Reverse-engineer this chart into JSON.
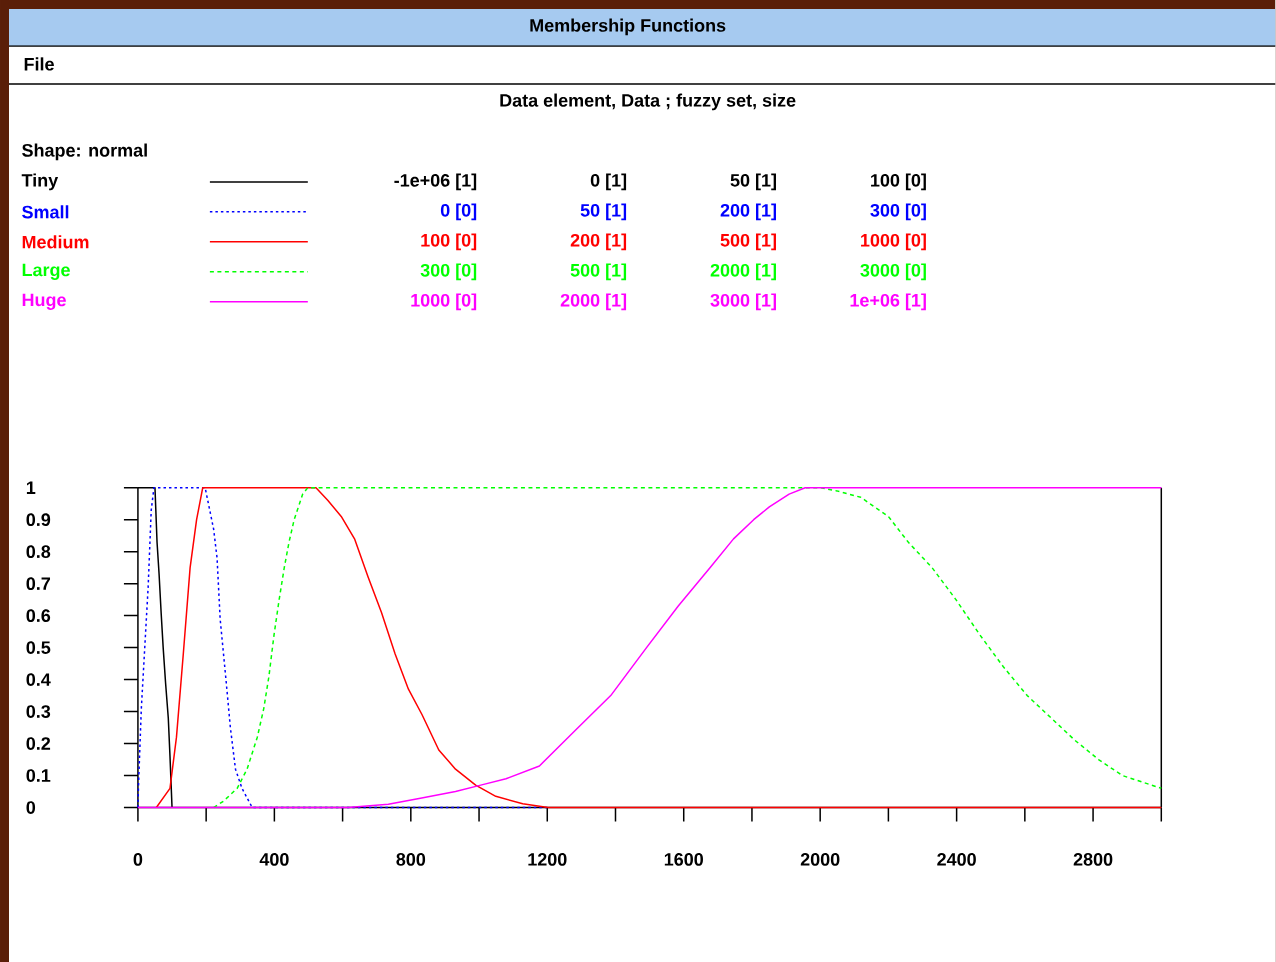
{
  "chart_data": {
    "type": "line",
    "title": "Membership Functions",
    "subtitle": "Data element, Data ; fuzzy set, size",
    "annotations": [
      "File",
      "Shape: normal",
      "-1e+06 [1]",
      "0 [1]",
      "50 [1]",
      "100 [0]",
      "0 [0]",
      "50 [1]",
      "200 [1]",
      "300 [0]",
      "100 [0]",
      "200 [1]",
      "500 [1]",
      "1000 [0]",
      "300 [0]",
      "500 [1]",
      "2000 [1]",
      "3000 [0]",
      "1000 [0]",
      "2000 [1]",
      "3000 [1]",
      "1e+06 [1]"
    ],
    "legend": "top left",
    "xlim": [
      0,
      3000
    ],
    "ylim": [
      0,
      1
    ],
    "xticks": [
      0,
      {
        "value": 200,
        "label": null
      },
      400,
      {
        "value": 600,
        "label": null
      },
      800,
      {
        "value": 1000,
        "label": null
      },
      1200,
      {
        "value": 1400,
        "label": null
      },
      1600,
      {
        "value": 1800,
        "label": null
      },
      2000,
      {
        "value": 2200,
        "label": null
      },
      2400,
      {
        "value": 2600,
        "label": null
      },
      2800,
      {
        "value": 3000,
        "label": null
      }
    ],
    "yticks": [
      0,
      0.1,
      0.2,
      0.3,
      0.4,
      0.5,
      0.6,
      0.7,
      0.8,
      0.9,
      1
    ],
    "series": [
      {
        "name": "Tiny",
        "color": "#000000",
        "line_style": "solid",
        "x": [
          0,
          50,
          56,
          62,
          68,
          74,
          81,
          89,
          94,
          100
        ],
        "values": [
          1,
          1,
          0.83,
          0.73,
          0.61,
          0.5,
          0.39,
          0.28,
          0.16,
          0
        ]
      },
      {
        "name": "Small",
        "color": "#0000ff",
        "line_style": "dotted",
        "x": [
          0,
          2,
          10,
          30,
          39,
          47,
          197,
          222,
          232,
          241,
          259,
          271,
          286,
          305,
          335,
          1200
        ],
        "values": [
          0,
          0.08,
          0.31,
          0.69,
          0.93,
          1,
          1,
          0.87,
          0.78,
          0.59,
          0.39,
          0.25,
          0.12,
          0.06,
          0,
          0
        ]
      },
      {
        "name": "Medium",
        "color": "#ff0000",
        "line_style": "solid",
        "x": [
          54,
          94,
          113,
          133,
          153,
          172,
          190,
          522,
          557,
          596,
          635,
          675,
          714,
          754,
          793,
          833,
          882,
          931,
          990,
          1049,
          1128,
          1202,
          3000
        ],
        "values": [
          0,
          0.06,
          0.22,
          0.48,
          0.75,
          0.9,
          1,
          1,
          0.96,
          0.91,
          0.84,
          0.72,
          0.61,
          0.48,
          0.37,
          0.29,
          0.18,
          0.12,
          0.07,
          0.035,
          0.012,
          0,
          0
        ]
      },
      {
        "name": "Large",
        "color": "#00ff00",
        "line_style": "dashed",
        "x": [
          222,
          251,
          291,
          320,
          350,
          369,
          384,
          399,
          414,
          429,
          443,
          458,
          483,
          498,
          2000,
          2049,
          2119,
          2200,
          2258,
          2328,
          2398,
          2468,
          2537,
          2607,
          2677,
          2747,
          2816,
          2886,
          3000
        ],
        "values": [
          0,
          0.02,
          0.06,
          0.12,
          0.22,
          0.31,
          0.41,
          0.54,
          0.65,
          0.75,
          0.83,
          0.9,
          0.98,
          1,
          1,
          0.99,
          0.97,
          0.91,
          0.83,
          0.75,
          0.65,
          0.54,
          0.44,
          0.35,
          0.28,
          0.21,
          0.15,
          0.1,
          0.06
        ]
      },
      {
        "name": "Huge",
        "color": "#ff00ff",
        "line_style": "solid",
        "x": [
          0,
          616,
          734,
          832,
          931,
          1005,
          1079,
          1177,
          1281,
          1386,
          1491,
          1584,
          1677,
          1746,
          1805,
          1851,
          1909,
          1956,
          3000
        ],
        "values": [
          0,
          0,
          0.01,
          0.03,
          0.05,
          0.07,
          0.09,
          0.13,
          0.24,
          0.35,
          0.5,
          0.63,
          0.75,
          0.84,
          0.9,
          0.94,
          0.98,
          1,
          1
        ]
      }
    ]
  }
}
